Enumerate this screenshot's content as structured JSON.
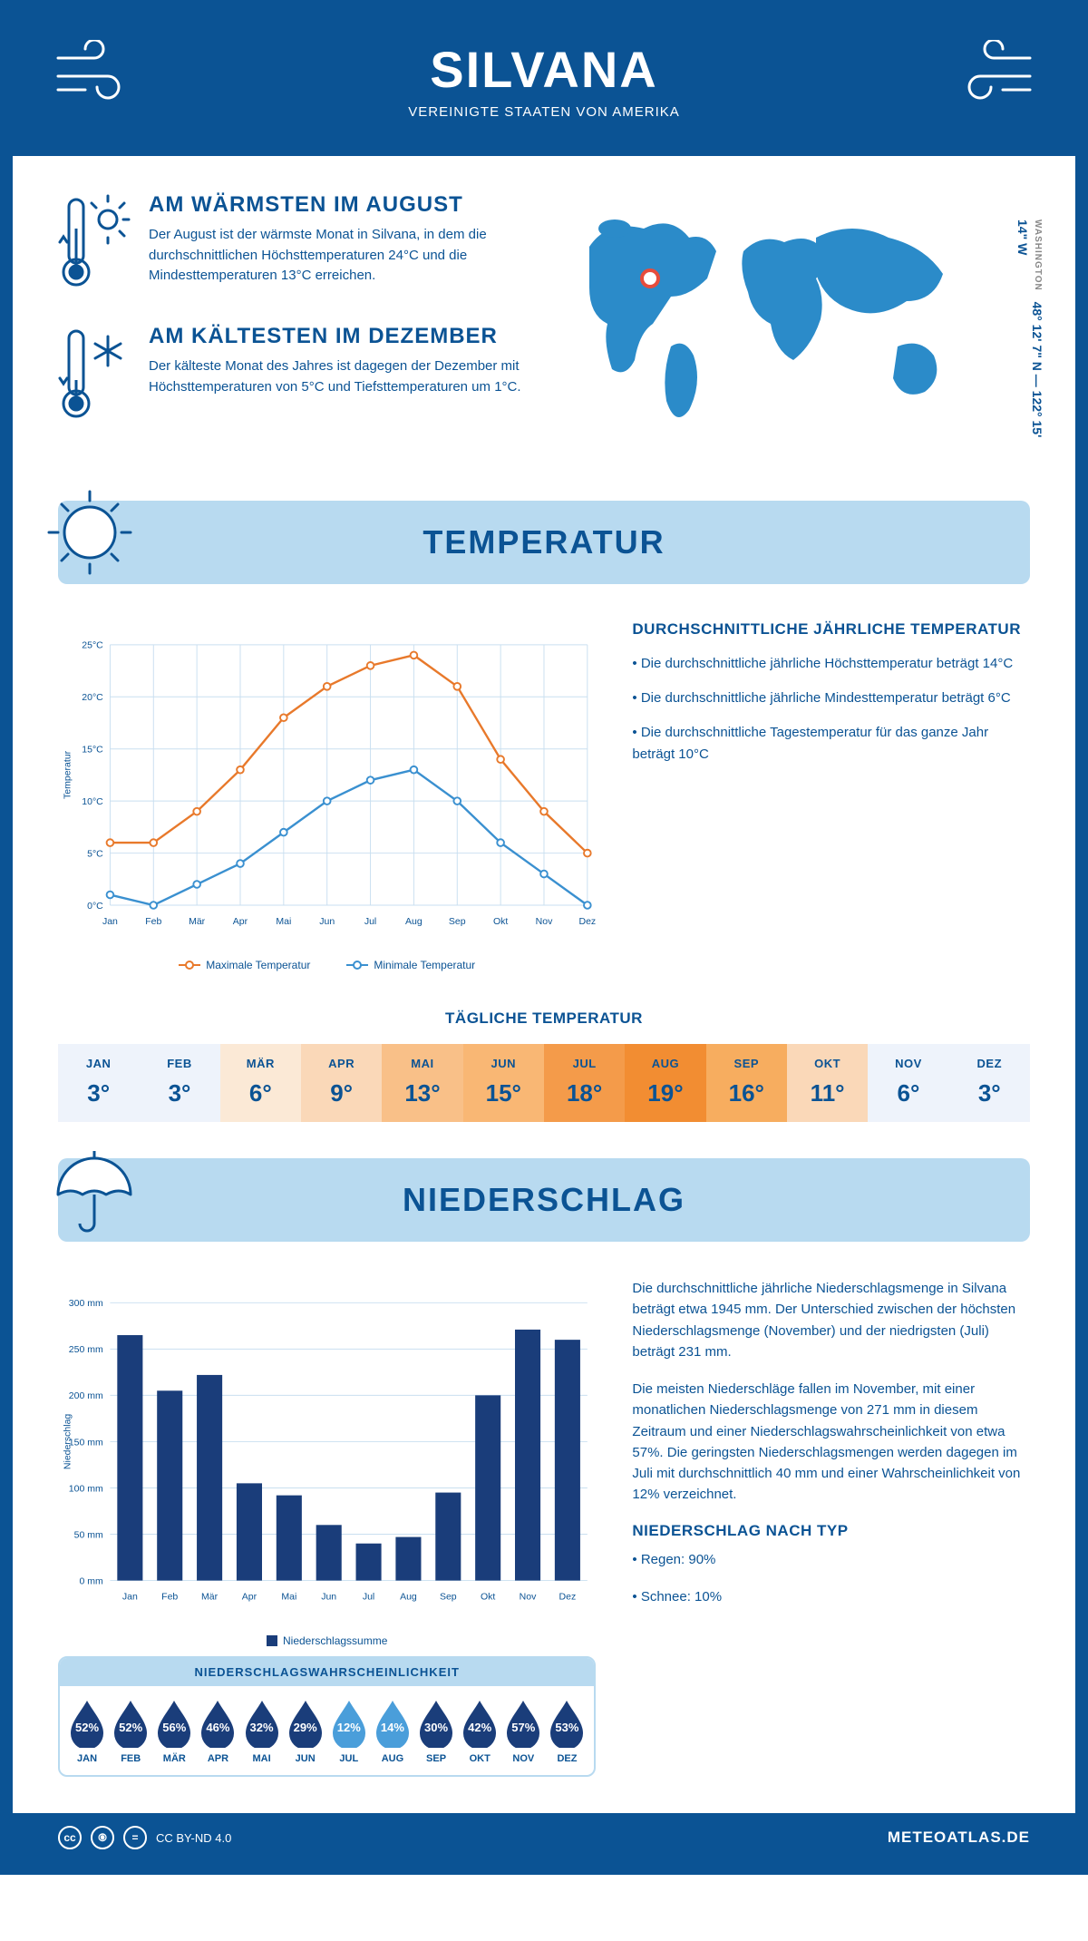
{
  "header": {
    "title": "SILVANA",
    "subtitle": "VEREINIGTE STAATEN VON AMERIKA"
  },
  "coords": {
    "region": "WASHINGTON",
    "text": "48° 12' 7\" N — 122° 15' 14\" W"
  },
  "facts": {
    "warm": {
      "title": "AM WÄRMSTEN IM AUGUST",
      "text": "Der August ist der wärmste Monat in Silvana, in dem die durchschnittlichen Höchsttemperaturen 24°C und die Mindesttemperaturen 13°C erreichen."
    },
    "cold": {
      "title": "AM KÄLTESTEN IM DEZEMBER",
      "text": "Der kälteste Monat des Jahres ist dagegen der Dezember mit Höchsttemperaturen von 5°C und Tiefsttemperaturen um 1°C."
    }
  },
  "colors": {
    "primary": "#0b5394",
    "light": "#b8daf0",
    "orange": "#e8792b",
    "blue_line": "#3a90d0",
    "grid": "#c9dff0",
    "bar": "#1a3d7a",
    "drop_dark": "#1a3d7a",
    "drop_light": "#4a9eda"
  },
  "temperature": {
    "banner": "TEMPERATUR",
    "info_title": "DURCHSCHNITTLICHE JÄHRLICHE TEMPERATUR",
    "bullets": [
      "• Die durchschnittliche jährliche Höchsttemperatur beträgt 14°C",
      "• Die durchschnittliche jährliche Mindesttemperatur beträgt 6°C",
      "• Die durchschnittliche Tagestemperatur für das ganze Jahr beträgt 10°C"
    ],
    "chart": {
      "y_label": "Temperatur",
      "months": [
        "Jan",
        "Feb",
        "Mär",
        "Apr",
        "Mai",
        "Jun",
        "Jul",
        "Aug",
        "Sep",
        "Okt",
        "Nov",
        "Dez"
      ],
      "max": [
        6,
        6,
        9,
        13,
        18,
        21,
        23,
        24,
        21,
        14,
        9,
        5
      ],
      "min": [
        1,
        0,
        2,
        4,
        7,
        10,
        12,
        13,
        10,
        6,
        3,
        0
      ],
      "ylim": [
        0,
        25
      ],
      "ytick": 5,
      "legend_max": "Maximale Temperatur",
      "legend_min": "Minimale Temperatur"
    },
    "daily": {
      "title": "TÄGLICHE TEMPERATUR",
      "months": [
        "JAN",
        "FEB",
        "MÄR",
        "APR",
        "MAI",
        "JUN",
        "JUL",
        "AUG",
        "SEP",
        "OKT",
        "NOV",
        "DEZ"
      ],
      "values": [
        "3°",
        "3°",
        "6°",
        "9°",
        "13°",
        "15°",
        "18°",
        "19°",
        "16°",
        "11°",
        "6°",
        "3°"
      ],
      "bg": [
        "#eef3fb",
        "#eef3fb",
        "#fbe9d6",
        "#fad8b8",
        "#f9c088",
        "#f9b774",
        "#f49b4a",
        "#f28d32",
        "#f7ad5f",
        "#fad8b8",
        "#eef3fb",
        "#eef3fb"
      ]
    }
  },
  "precipitation": {
    "banner": "NIEDERSCHLAG",
    "para1": "Die durchschnittliche jährliche Niederschlagsmenge in Silvana beträgt etwa 1945 mm. Der Unterschied zwischen der höchsten Niederschlagsmenge (November) und der niedrigsten (Juli) beträgt 231 mm.",
    "para2": "Die meisten Niederschläge fallen im November, mit einer monatlichen Niederschlagsmenge von 271 mm in diesem Zeitraum und einer Niederschlagswahrscheinlichkeit von etwa 57%. Die geringsten Niederschlagsmengen werden dagegen im Juli mit durchschnittlich 40 mm und einer Wahrscheinlichkeit von 12% verzeichnet.",
    "type_title": "NIEDERSCHLAG NACH TYP",
    "type_lines": [
      "• Regen: 90%",
      "• Schnee: 10%"
    ],
    "chart": {
      "y_label": "Niederschlag",
      "months": [
        "Jan",
        "Feb",
        "Mär",
        "Apr",
        "Mai",
        "Jun",
        "Jul",
        "Aug",
        "Sep",
        "Okt",
        "Nov",
        "Dez"
      ],
      "values": [
        265,
        205,
        222,
        105,
        92,
        60,
        40,
        47,
        95,
        200,
        271,
        260
      ],
      "ylim": [
        0,
        300
      ],
      "ytick": 50,
      "legend": "Niederschlagssumme"
    },
    "probability": {
      "title": "NIEDERSCHLAGSWAHRSCHEINLICHKEIT",
      "months": [
        "JAN",
        "FEB",
        "MÄR",
        "APR",
        "MAI",
        "JUN",
        "JUL",
        "AUG",
        "SEP",
        "OKT",
        "NOV",
        "DEZ"
      ],
      "pct": [
        "52%",
        "52%",
        "56%",
        "46%",
        "32%",
        "29%",
        "12%",
        "14%",
        "30%",
        "42%",
        "57%",
        "53%"
      ],
      "light": [
        false,
        false,
        false,
        false,
        false,
        false,
        true,
        true,
        false,
        false,
        false,
        false
      ]
    }
  },
  "footer": {
    "license": "CC BY-ND 4.0",
    "site": "METEOATLAS.DE"
  }
}
